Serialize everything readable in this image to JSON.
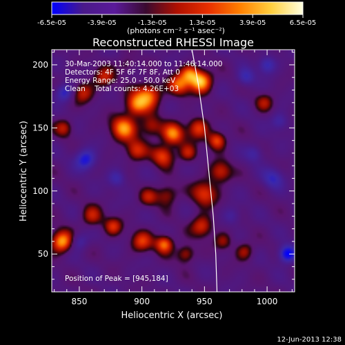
{
  "chart_data": {
    "type": "heatmap",
    "title": "Reconstructed RHESSI Image",
    "xlabel": "Heliocentric X (arcsec)",
    "ylabel": "Heliocentric Y (arcsec)",
    "xlim": [
      828,
      1022
    ],
    "ylim": [
      20,
      212
    ],
    "x_ticks": [
      850,
      900,
      950,
      1000
    ],
    "y_ticks": [
      50,
      100,
      150,
      200
    ],
    "colorbar": {
      "min": -6.5e-05,
      "max": 6.5e-05,
      "tick_values": [
        -6.5e-05,
        -3.9e-05,
        -1.3e-05,
        1.3e-05,
        3.9e-05,
        6.5e-05
      ],
      "tick_labels": [
        "-6.5e-05",
        "-3.9e-05",
        "-1.3e-05",
        "1.3e-05",
        "3.9e-05",
        "6.5e-05"
      ],
      "unit_label": "(photons cm⁻² s⁻¹ asec⁻²)",
      "colors": [
        "#0000ff",
        "#4a1a8a",
        "#5a1a9a",
        "#3a0a30",
        "#b01000",
        "#e83000",
        "#ff8000",
        "#ffd040",
        "#ffffe0"
      ]
    },
    "annotations": {
      "time_range": "30-Mar-2003 11:40:14.000 to 11:46:14.000",
      "detectors": "Detectors: 4F 5F 6F 7F 8F, Att 0",
      "energy_range": "Energy Range: 25.0 - 50.0 keV",
      "clean_counts": "Clean    Total counts: 4.26E+03",
      "peak_position": "Position of Peak = [945,184]"
    },
    "limb": [
      [
        940,
        212
      ],
      [
        945,
        185
      ],
      [
        950,
        150
      ],
      [
        954,
        110
      ],
      [
        957,
        80
      ],
      [
        959,
        50
      ],
      [
        960,
        20
      ]
    ],
    "sources": [
      {
        "x": 947,
        "y": 187,
        "amp": 6.3e-05,
        "s": 6
      },
      {
        "x": 938,
        "y": 193,
        "amp": 4e-05,
        "s": 5
      },
      {
        "x": 930,
        "y": 184,
        "amp": 4.5e-05,
        "s": 6
      },
      {
        "x": 905,
        "y": 176,
        "amp": 5e-05,
        "s": 7
      },
      {
        "x": 895,
        "y": 168,
        "amp": 4.4e-05,
        "s": 6
      },
      {
        "x": 885,
        "y": 150,
        "amp": 5.2e-05,
        "s": 7
      },
      {
        "x": 907,
        "y": 151,
        "amp": 3.2e-05,
        "s": 6
      },
      {
        "x": 925,
        "y": 145,
        "amp": 5e-05,
        "s": 6
      },
      {
        "x": 917,
        "y": 128,
        "amp": 4.1e-05,
        "s": 6
      },
      {
        "x": 895,
        "y": 132,
        "amp": 3.6e-05,
        "s": 6
      },
      {
        "x": 937,
        "y": 130,
        "amp": 3.1e-05,
        "s": 5
      },
      {
        "x": 945,
        "y": 150,
        "amp": 3.9e-05,
        "s": 6
      },
      {
        "x": 960,
        "y": 140,
        "amp": 4.4e-05,
        "s": 5
      },
      {
        "x": 963,
        "y": 115,
        "amp": 3.5e-05,
        "s": 6
      },
      {
        "x": 950,
        "y": 98,
        "amp": 3.9e-05,
        "s": 7
      },
      {
        "x": 948,
        "y": 72,
        "amp": 3.8e-05,
        "s": 6
      },
      {
        "x": 965,
        "y": 60,
        "amp": 2.5e-05,
        "s": 5
      },
      {
        "x": 982,
        "y": 52,
        "amp": 2.6e-05,
        "s": 5
      },
      {
        "x": 920,
        "y": 97,
        "amp": 3e-05,
        "s": 6
      },
      {
        "x": 905,
        "y": 95,
        "amp": 2.5e-05,
        "s": 5
      },
      {
        "x": 870,
        "y": 190,
        "amp": 3e-05,
        "s": 6
      },
      {
        "x": 853,
        "y": 178,
        "amp": 3.1e-05,
        "s": 6
      },
      {
        "x": 838,
        "y": 150,
        "amp": 2.8e-05,
        "s": 5
      },
      {
        "x": 836,
        "y": 60,
        "amp": 5.9e-05,
        "s": 6
      },
      {
        "x": 860,
        "y": 80,
        "amp": 3e-05,
        "s": 6
      },
      {
        "x": 877,
        "y": 72,
        "amp": 3.4e-05,
        "s": 5
      },
      {
        "x": 900,
        "y": 60,
        "amp": 3.6e-05,
        "s": 6
      },
      {
        "x": 918,
        "y": 58,
        "amp": 4.9e-05,
        "s": 5
      },
      {
        "x": 935,
        "y": 50,
        "amp": 3.3e-05,
        "s": 5
      },
      {
        "x": 998,
        "y": 170,
        "amp": 2.4e-05,
        "s": 5
      },
      {
        "x": 888,
        "y": 200,
        "amp": 2e-05,
        "s": 5
      },
      {
        "x": 855,
        "y": 125,
        "amp": -4.3e-05,
        "s": 6
      },
      {
        "x": 838,
        "y": 178,
        "amp": -3.9e-05,
        "s": 5
      },
      {
        "x": 1016,
        "y": 50,
        "amp": -5.6e-05,
        "s": 5
      },
      {
        "x": 1000,
        "y": 200,
        "amp": -3.6e-05,
        "s": 5
      },
      {
        "x": 983,
        "y": 190,
        "amp": -3.1e-05,
        "s": 5
      },
      {
        "x": 1005,
        "y": 110,
        "amp": -3.1e-05,
        "s": 6
      },
      {
        "x": 990,
        "y": 130,
        "amp": -2.4e-05,
        "s": 5
      },
      {
        "x": 880,
        "y": 110,
        "amp": -2.9e-05,
        "s": 5
      },
      {
        "x": 850,
        "y": 60,
        "amp": -2.6e-05,
        "s": 5
      },
      {
        "x": 1010,
        "y": 155,
        "amp": -2.6e-05,
        "s": 5
      },
      {
        "x": 972,
        "y": 80,
        "amp": -2.1e-05,
        "s": 5
      }
    ]
  },
  "footer": {
    "date": "12-Jun-2013 12:38"
  }
}
